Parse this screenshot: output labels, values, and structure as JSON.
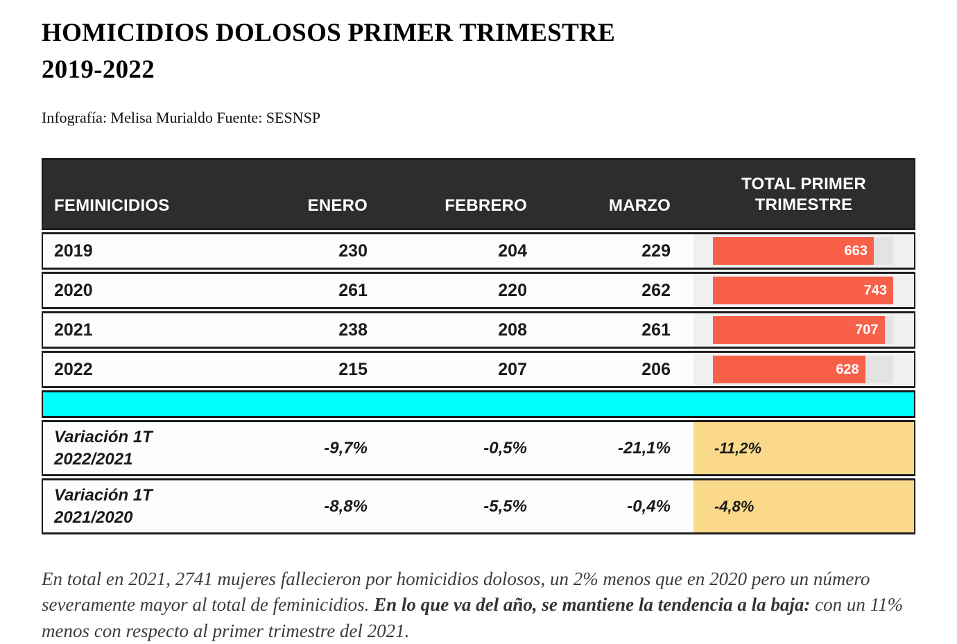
{
  "header": {
    "title_line1": "HOMICIDIOS DOLOSOS PRIMER TRIMESTRE",
    "title_line2": "2019-2022",
    "credit": "Infografía: Melisa Murialdo Fuente: SESNSP"
  },
  "table": {
    "headers": [
      "FEMINICIDIOS",
      "ENERO",
      "FEBRERO",
      "MARZO",
      "TOTAL PRIMER TRIMESTRE"
    ],
    "rows": [
      {
        "year": "2019",
        "enero": "230",
        "febrero": "204",
        "marzo": "229",
        "total": "663",
        "bar_pct": 89.2
      },
      {
        "year": "2020",
        "enero": "261",
        "febrero": "220",
        "marzo": "262",
        "total": "743",
        "bar_pct": 100
      },
      {
        "year": "2021",
        "enero": "238",
        "febrero": "208",
        "marzo": "261",
        "total": "707",
        "bar_pct": 95.2
      },
      {
        "year": "2022",
        "enero": "215",
        "febrero": "207",
        "marzo": "206",
        "total": "628",
        "bar_pct": 84.5
      }
    ],
    "variations": [
      {
        "label_line1": "Variación 1T",
        "label_line2": "2022/2021",
        "enero": "-9,7%",
        "febrero": "-0,5%",
        "marzo": "-21,1%",
        "total": "-11,2%"
      },
      {
        "label_line1": "Variación 1T",
        "label_line2": "2021/2020",
        "enero": "-8,8%",
        "febrero": "-5,5%",
        "marzo": "-0,4%",
        "total": "-4,8%"
      }
    ]
  },
  "colors": {
    "header_bg": "#2d2d2d",
    "border": "#1d1d1d",
    "bar": "#f9604a",
    "bar_track": "#e3e3e3",
    "total_cell_bg": "#f0f0f0",
    "cyan_band": "#00ffff",
    "yellow_cell": "#fbd98b"
  },
  "footnote": {
    "part1": "En total en 2021, 2741 mujeres fallecieron por homicidios dolosos, un 2% menos que en 2020 pero un número severamente mayor al total de feminicidios. ",
    "part2": "En lo que va del año, se mantiene la tendencia a la baja:",
    "part3": " con un 11% menos con respecto al primer trimestre del 2021."
  },
  "chart_data": {
    "type": "table",
    "title": "HOMICIDIOS DOLOSOS PRIMER TRIMESTRE 2019-2022",
    "subtitle": "Infografía: Melisa Murialdo Fuente: SESNSP",
    "columns": [
      "FEMINICIDIOS",
      "ENERO",
      "FEBRERO",
      "MARZO",
      "TOTAL PRIMER TRIMESTRE"
    ],
    "categories": [
      "ENERO",
      "FEBRERO",
      "MARZO"
    ],
    "series": [
      {
        "name": "2019",
        "values": [
          230,
          204,
          229
        ],
        "total": 663
      },
      {
        "name": "2020",
        "values": [
          261,
          220,
          262
        ],
        "total": 743
      },
      {
        "name": "2021",
        "values": [
          238,
          208,
          261
        ],
        "total": 707
      },
      {
        "name": "2022",
        "values": [
          215,
          207,
          206
        ],
        "total": 628
      }
    ],
    "embedded_bar": {
      "type": "bar",
      "label": "TOTAL PRIMER TRIMESTRE",
      "categories": [
        "2019",
        "2020",
        "2021",
        "2022"
      ],
      "values": [
        663,
        743,
        707,
        628
      ],
      "max": 743,
      "color": "#f9604a"
    },
    "variation_rows": [
      {
        "label": "Variación 1T 2022/2021",
        "values": [
          "-9,7%",
          "-0,5%",
          "-21,1%",
          "-11,2%"
        ]
      },
      {
        "label": "Variación 1T 2021/2020",
        "values": [
          "-8,8%",
          "-5,5%",
          "-0,4%",
          "-4,8%"
        ]
      }
    ]
  }
}
